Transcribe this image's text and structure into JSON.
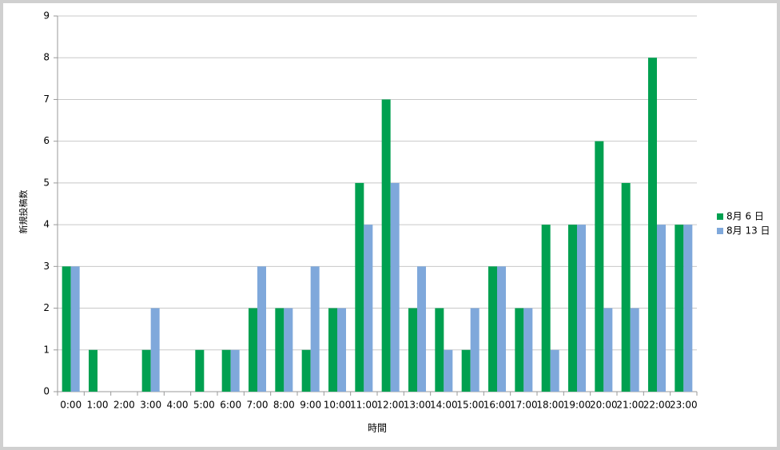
{
  "chart_data": {
    "type": "bar",
    "y_label": "新規投稿数",
    "x_label": "時間",
    "categories": [
      "0:00",
      "1:00",
      "2:00",
      "3:00",
      "4:00",
      "5:00",
      "6:00",
      "7:00",
      "8:00",
      "9:00",
      "10:00",
      "11:00",
      "12:00",
      "13:00",
      "14:00",
      "15:00",
      "16:00",
      "17:00",
      "18:00",
      "19:00",
      "20:00",
      "21:00",
      "22:00",
      "23:00"
    ],
    "series": [
      {
        "name": "8月 6 日",
        "color": "#00a050",
        "values": [
          3,
          1,
          0,
          1,
          0,
          1,
          1,
          2,
          2,
          1,
          2,
          5,
          7,
          2,
          2,
          1,
          3,
          2,
          4,
          4,
          6,
          5,
          8,
          4
        ]
      },
      {
        "name": "8月 13 日",
        "color": "#7fa8db",
        "values": [
          3,
          0,
          0,
          2,
          0,
          0,
          1,
          3,
          2,
          3,
          2,
          4,
          5,
          3,
          1,
          2,
          3,
          2,
          1,
          4,
          2,
          2,
          4,
          4
        ]
      }
    ],
    "ylim": [
      0,
      9
    ],
    "yticks": [
      0,
      1,
      2,
      3,
      4,
      5,
      6,
      7,
      8,
      9
    ],
    "grid": true,
    "legend": "right"
  }
}
